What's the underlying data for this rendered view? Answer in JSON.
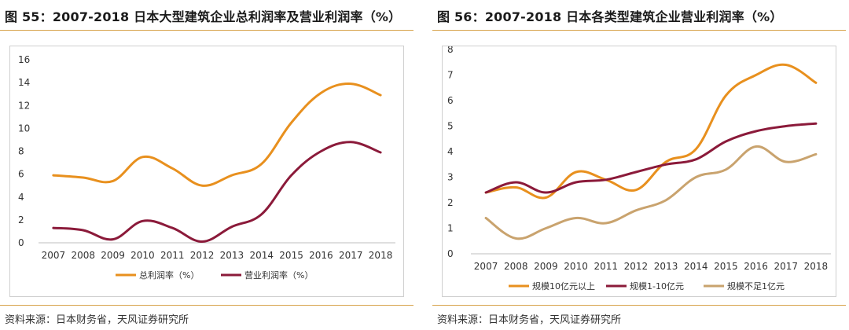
{
  "charts": {
    "left": {
      "title": "图 55：2007-2018 日本大型建筑企业总利润率及营业利润率（%）",
      "source": "资料来源：日本财务省，天风证券研究所"
    },
    "right": {
      "title": "图 56：2007-2018 日本各类型建筑企业营业利润率（%）",
      "source": "资料来源：日本财务省，天风证券研究所"
    }
  },
  "chart_data": [
    {
      "type": "line",
      "title": "图 55：2007-2018 日本大型建筑企业总利润率及营业利润率（%）",
      "xlabel": "",
      "ylabel": "",
      "categories": [
        "2007",
        "2008",
        "2009",
        "2010",
        "2011",
        "2012",
        "2013",
        "2014",
        "2015",
        "2016",
        "2017",
        "2018"
      ],
      "yticks": [
        "0",
        "2",
        "4",
        "6",
        "8",
        "10",
        "12",
        "14",
        "16"
      ],
      "ylim": [
        0,
        16
      ],
      "grid": false,
      "legend_position": "bottom",
      "series": [
        {
          "name": "总利润率（%）",
          "color": "#e8901e",
          "values": [
            5.9,
            5.7,
            5.4,
            7.5,
            6.5,
            5.0,
            5.9,
            6.9,
            10.5,
            13.1,
            13.9,
            12.9
          ]
        },
        {
          "name": "营业利润率（%）",
          "color": "#8b1a3a",
          "values": [
            1.3,
            1.1,
            0.3,
            1.9,
            1.3,
            0.1,
            1.4,
            2.5,
            5.9,
            8.0,
            8.8,
            7.9
          ]
        }
      ]
    },
    {
      "type": "line",
      "title": "图 56：2007-2018 日本各类型建筑企业营业利润率（%）",
      "xlabel": "",
      "ylabel": "",
      "categories": [
        "2007",
        "2008",
        "2009",
        "2010",
        "2011",
        "2012",
        "2013",
        "2014",
        "2015",
        "2016",
        "2017",
        "2018"
      ],
      "yticks": [
        "0",
        "1",
        "2",
        "3",
        "4",
        "5",
        "6",
        "7",
        "8"
      ],
      "ylim": [
        0,
        8
      ],
      "grid": false,
      "legend_position": "bottom",
      "series": [
        {
          "name": "规模10亿元以上",
          "color": "#e8901e",
          "values": [
            2.4,
            2.6,
            2.2,
            3.2,
            2.9,
            2.5,
            3.6,
            4.1,
            6.2,
            7.0,
            7.4,
            6.7
          ]
        },
        {
          "name": "规模1-10亿元",
          "color": "#8b1a3a",
          "values": [
            2.4,
            2.8,
            2.4,
            2.8,
            2.9,
            3.2,
            3.5,
            3.7,
            4.4,
            4.8,
            5.0,
            5.1
          ]
        },
        {
          "name": "规模不足1亿元",
          "color": "#c9a36e",
          "values": [
            1.4,
            0.6,
            1.0,
            1.4,
            1.2,
            1.7,
            2.1,
            3.0,
            3.3,
            4.2,
            3.6,
            3.9
          ]
        }
      ]
    }
  ]
}
